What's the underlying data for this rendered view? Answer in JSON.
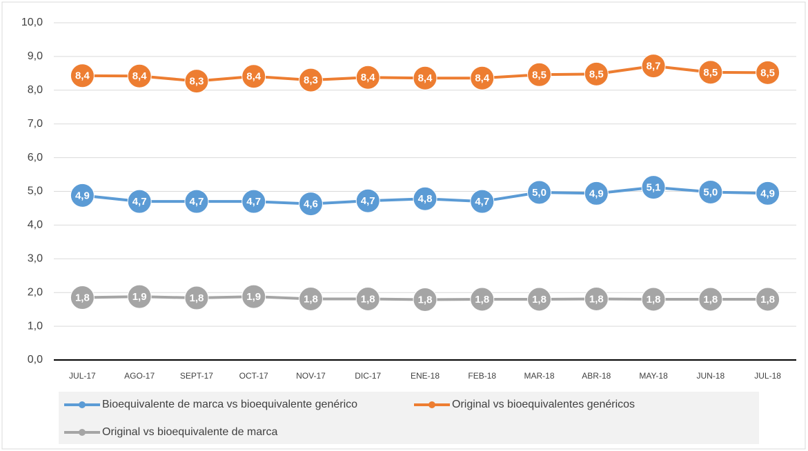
{
  "chart_data": {
    "type": "line",
    "categories": [
      "JUL-17",
      "AGO-17",
      "SEPT-17",
      "OCT-17",
      "NOV-17",
      "DIC-17",
      "ENE-18",
      "FEB-18",
      "MAR-18",
      "ABR-18",
      "MAY-18",
      "JUN-18",
      "JUL-18"
    ],
    "series": [
      {
        "name": "Bioequivalente de marca vs bioequivalente genérico",
        "color": "#5b9bd5",
        "values": [
          4.88,
          4.7,
          4.7,
          4.7,
          4.63,
          4.72,
          4.78,
          4.7,
          4.97,
          4.94,
          5.12,
          4.98,
          4.94
        ],
        "value_labels": [
          "4,9",
          "4,7",
          "4,7",
          "4,7",
          "4,6",
          "4,7",
          "4,8",
          "4,7",
          "5,0",
          "4,9",
          "5,1",
          "5,0",
          "4,9"
        ]
      },
      {
        "name": "Original vs bioequivalentes genéricos",
        "color": "#ed7d31",
        "values": [
          8.43,
          8.42,
          8.27,
          8.41,
          8.3,
          8.38,
          8.36,
          8.36,
          8.46,
          8.48,
          8.72,
          8.53,
          8.52
        ],
        "value_labels": [
          "8,4",
          "8,4",
          "8,3",
          "8,4",
          "8,3",
          "8,4",
          "8,4",
          "8,4",
          "8,5",
          "8,5",
          "8,7",
          "8,5",
          "8,5"
        ]
      },
      {
        "name": "Original vs bioequivalente de marca",
        "color": "#a5a5a5",
        "values": [
          1.85,
          1.88,
          1.84,
          1.88,
          1.81,
          1.81,
          1.79,
          1.8,
          1.8,
          1.81,
          1.8,
          1.8,
          1.8
        ],
        "value_labels": [
          "1,8",
          "1,9",
          "1,8",
          "1,9",
          "1,8",
          "1,8",
          "1,8",
          "1,8",
          "1,8",
          "1,8",
          "1,8",
          "1,8",
          "1,8"
        ]
      }
    ],
    "ylim": [
      0,
      10
    ],
    "yticks": [
      {
        "value": 0,
        "label": "0,0"
      },
      {
        "value": 1,
        "label": "1,0"
      },
      {
        "value": 2,
        "label": "2,0"
      },
      {
        "value": 3,
        "label": "3,0"
      },
      {
        "value": 4,
        "label": "4,0"
      },
      {
        "value": 5,
        "label": "5,0"
      },
      {
        "value": 6,
        "label": "6,0"
      },
      {
        "value": 7,
        "label": "7,0"
      },
      {
        "value": 8,
        "label": "8,0"
      },
      {
        "value": 9,
        "label": "9,0"
      },
      {
        "value": 10,
        "label": "10,0"
      }
    ],
    "grid": true,
    "legend": "bottom"
  }
}
